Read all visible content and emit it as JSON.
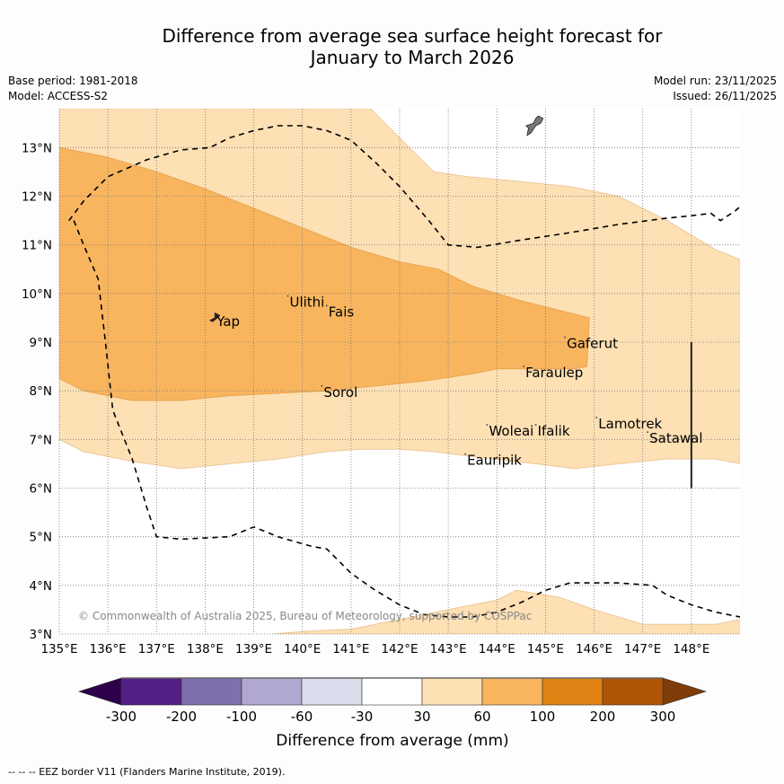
{
  "title_line1": "Difference from average sea surface height forecast for",
  "title_line2": "January to March 2026",
  "meta": {
    "base_period": "Base period: 1981-2018",
    "model": "Model: ACCESS-S2",
    "model_run": "Model run: 23/11/2025",
    "issued": "Issued: 26/11/2025"
  },
  "copyright": "© Commonwealth of Australia 2025, Bureau of Meteorology, supported by COSPPac",
  "footer": "--  --  -- EEZ border V11 (Flanders Marine Institute, 2019).",
  "chart_data": {
    "type": "heatmap",
    "title": "Difference from average sea surface height forecast for January to March 2026",
    "extent": {
      "lon": [
        135,
        149
      ],
      "lat": [
        3,
        13.8
      ]
    },
    "x_ticks": [
      "135°E",
      "136°E",
      "137°E",
      "138°E",
      "139°E",
      "140°E",
      "141°E",
      "142°E",
      "143°E",
      "144°E",
      "145°E",
      "146°E",
      "147°E",
      "148°E"
    ],
    "x_tick_values": [
      135,
      136,
      137,
      138,
      139,
      140,
      141,
      142,
      143,
      144,
      145,
      146,
      147,
      148
    ],
    "y_ticks": [
      "3°N",
      "4°N",
      "5°N",
      "6°N",
      "7°N",
      "8°N",
      "9°N",
      "10°N",
      "11°N",
      "12°N",
      "13°N"
    ],
    "y_tick_values": [
      3,
      4,
      5,
      6,
      7,
      8,
      9,
      10,
      11,
      12,
      13
    ],
    "grid": true,
    "regions": [
      {
        "name": "30-60mm",
        "color": "#fde0b4",
        "outline": "#eec799",
        "polygon": [
          [
            135,
            13.8
          ],
          [
            141.4,
            13.8
          ],
          [
            141.6,
            13.6
          ],
          [
            142.7,
            12.5
          ],
          [
            143.4,
            12.4
          ],
          [
            144.5,
            12.3
          ],
          [
            145.5,
            12.2
          ],
          [
            146.5,
            12.0
          ],
          [
            147.5,
            11.5
          ],
          [
            148.5,
            10.9
          ],
          [
            149,
            10.7
          ],
          [
            149,
            6.5
          ],
          [
            148.5,
            6.6
          ],
          [
            147.5,
            6.6
          ],
          [
            146.5,
            6.5
          ],
          [
            145.6,
            6.4
          ],
          [
            144.8,
            6.5
          ],
          [
            143.9,
            6.6
          ],
          [
            142.7,
            6.75
          ],
          [
            142,
            6.8
          ],
          [
            141.2,
            6.8
          ],
          [
            140.5,
            6.75
          ],
          [
            139.5,
            6.6
          ],
          [
            138.5,
            6.5
          ],
          [
            137.5,
            6.4
          ],
          [
            136.5,
            6.55
          ],
          [
            135.5,
            6.75
          ],
          [
            135,
            7.0
          ]
        ]
      },
      {
        "name": "30-60mm south",
        "color": "#fde0b4",
        "outline": "#eec799",
        "polygon": [
          [
            139.4,
            3
          ],
          [
            140,
            3.05
          ],
          [
            141,
            3.1
          ],
          [
            142,
            3.3
          ],
          [
            143,
            3.5
          ],
          [
            144,
            3.7
          ],
          [
            144.4,
            3.9
          ],
          [
            145.3,
            3.75
          ],
          [
            146,
            3.5
          ],
          [
            147,
            3.2
          ],
          [
            148,
            3.2
          ],
          [
            148.5,
            3.2
          ],
          [
            149,
            3.3
          ],
          [
            149,
            3
          ]
        ]
      },
      {
        "name": "60-100mm",
        "color": "#f9b55e",
        "outline": "#e9a34f",
        "polygon": [
          [
            135,
            13.0
          ],
          [
            136,
            12.8
          ],
          [
            137,
            12.5
          ],
          [
            138,
            12.15
          ],
          [
            139,
            11.75
          ],
          [
            140,
            11.35
          ],
          [
            141,
            10.95
          ],
          [
            142,
            10.65
          ],
          [
            142.8,
            10.5
          ],
          [
            143.5,
            10.15
          ],
          [
            144.5,
            9.85
          ],
          [
            145.5,
            9.6
          ],
          [
            145.9,
            9.5
          ],
          [
            145.85,
            8.5
          ],
          [
            145.6,
            8.45
          ],
          [
            145,
            8.45
          ],
          [
            144,
            8.45
          ],
          [
            143.5,
            8.35
          ],
          [
            142.5,
            8.2
          ],
          [
            141.5,
            8.1
          ],
          [
            140.5,
            8.0
          ],
          [
            139.5,
            7.95
          ],
          [
            138.5,
            7.9
          ],
          [
            137.5,
            7.8
          ],
          [
            136.5,
            7.8
          ],
          [
            135.5,
            8.0
          ],
          [
            135,
            8.25
          ]
        ]
      }
    ],
    "eez_border": [
      [
        135.2,
        11.5
      ],
      [
        135.5,
        11.9
      ],
      [
        136,
        12.4
      ],
      [
        136.8,
        12.75
      ],
      [
        137.5,
        12.95
      ],
      [
        138.1,
        13.0
      ],
      [
        138.5,
        13.2
      ],
      [
        139,
        13.35
      ],
      [
        139.5,
        13.45
      ],
      [
        140,
        13.45
      ],
      [
        140.5,
        13.35
      ],
      [
        141,
        13.15
      ],
      [
        141.5,
        12.7
      ],
      [
        142,
        12.2
      ],
      [
        142.6,
        11.5
      ],
      [
        143,
        11.0
      ],
      [
        143.6,
        10.95
      ],
      [
        144.5,
        11.1
      ],
      [
        145.5,
        11.25
      ],
      [
        146.5,
        11.42
      ],
      [
        147.5,
        11.55
      ],
      [
        148,
        11.6
      ],
      [
        148.4,
        11.65
      ],
      [
        148.6,
        11.5
      ],
      [
        148.9,
        11.7
      ],
      [
        149.2,
        11.95
      ],
      [
        149.4,
        12.1
      ]
    ],
    "eez_border_south": [
      [
        135.3,
        11.5
      ],
      [
        135.5,
        11.0
      ],
      [
        135.8,
        10.3
      ],
      [
        135.95,
        9.0
      ],
      [
        136.1,
        7.6
      ],
      [
        136.5,
        6.6
      ],
      [
        136.8,
        5.6
      ],
      [
        137,
        5.0
      ],
      [
        137.5,
        4.95
      ],
      [
        138.5,
        5.0
      ],
      [
        139,
        5.2
      ],
      [
        139.5,
        5.0
      ],
      [
        140.2,
        4.8
      ],
      [
        140.5,
        4.75
      ],
      [
        141,
        4.25
      ],
      [
        141.5,
        3.9
      ],
      [
        142,
        3.6
      ],
      [
        142.5,
        3.4
      ],
      [
        143,
        3.35
      ],
      [
        143.5,
        3.35
      ],
      [
        144,
        3.45
      ],
      [
        144.5,
        3.65
      ],
      [
        145,
        3.9
      ],
      [
        145.5,
        4.05
      ],
      [
        146,
        4.05
      ],
      [
        146.5,
        4.05
      ],
      [
        147.2,
        4.0
      ],
      [
        147.5,
        3.8
      ],
      [
        148,
        3.6
      ],
      [
        148.5,
        3.45
      ],
      [
        149,
        3.35
      ]
    ],
    "places": [
      {
        "name": "Yap",
        "lon": 138.2,
        "lat": 9.55
      },
      {
        "name": "Ulithi",
        "lon": 139.7,
        "lat": 9.95
      },
      {
        "name": "Fais",
        "lon": 140.5,
        "lat": 9.75
      },
      {
        "name": "Sorol",
        "lon": 140.4,
        "lat": 8.1
      },
      {
        "name": "Gaferut",
        "lon": 145.4,
        "lat": 9.1
      },
      {
        "name": "Faraulep",
        "lon": 144.55,
        "lat": 8.5
      },
      {
        "name": "Woleai",
        "lon": 143.8,
        "lat": 7.3
      },
      {
        "name": "Ifalik",
        "lon": 144.8,
        "lat": 7.3
      },
      {
        "name": "Lamotrek",
        "lon": 146.05,
        "lat": 7.45
      },
      {
        "name": "Satawal",
        "lon": 147.1,
        "lat": 7.15
      },
      {
        "name": "Eauripik",
        "lon": 143.35,
        "lat": 6.7
      }
    ],
    "land": [
      {
        "name": "Yap island",
        "color": "#222222",
        "polygon": [
          [
            138.2,
            9.6
          ],
          [
            138.3,
            9.55
          ],
          [
            138.25,
            9.5
          ],
          [
            138.15,
            9.42
          ],
          [
            138.1,
            9.45
          ],
          [
            138.2,
            9.5
          ]
        ]
      },
      {
        "name": "Guam",
        "color": "#777777",
        "polygon": [
          [
            144.85,
            13.65
          ],
          [
            144.95,
            13.6
          ],
          [
            144.9,
            13.5
          ],
          [
            144.8,
            13.45
          ],
          [
            144.7,
            13.3
          ],
          [
            144.62,
            13.25
          ],
          [
            144.65,
            13.4
          ],
          [
            144.6,
            13.45
          ],
          [
            144.75,
            13.5
          ],
          [
            144.8,
            13.6
          ]
        ]
      }
    ],
    "vertical_line": {
      "lon": 148,
      "lat": [
        6,
        9
      ]
    },
    "legend": {
      "title": "Difference from average (mm)",
      "labels": [
        "-300",
        "-200",
        "-100",
        "-60",
        "-30",
        "30",
        "60",
        "100",
        "200",
        "300"
      ],
      "colors": [
        "#531f85",
        "#7e70aa",
        "#b0a8d1",
        "#dadbeb",
        "#ffffff",
        "#fde0b4",
        "#f9b55e",
        "#e08214",
        "#b05506"
      ],
      "under_color": "#2d004b",
      "over_color": "#7f3b08"
    }
  }
}
